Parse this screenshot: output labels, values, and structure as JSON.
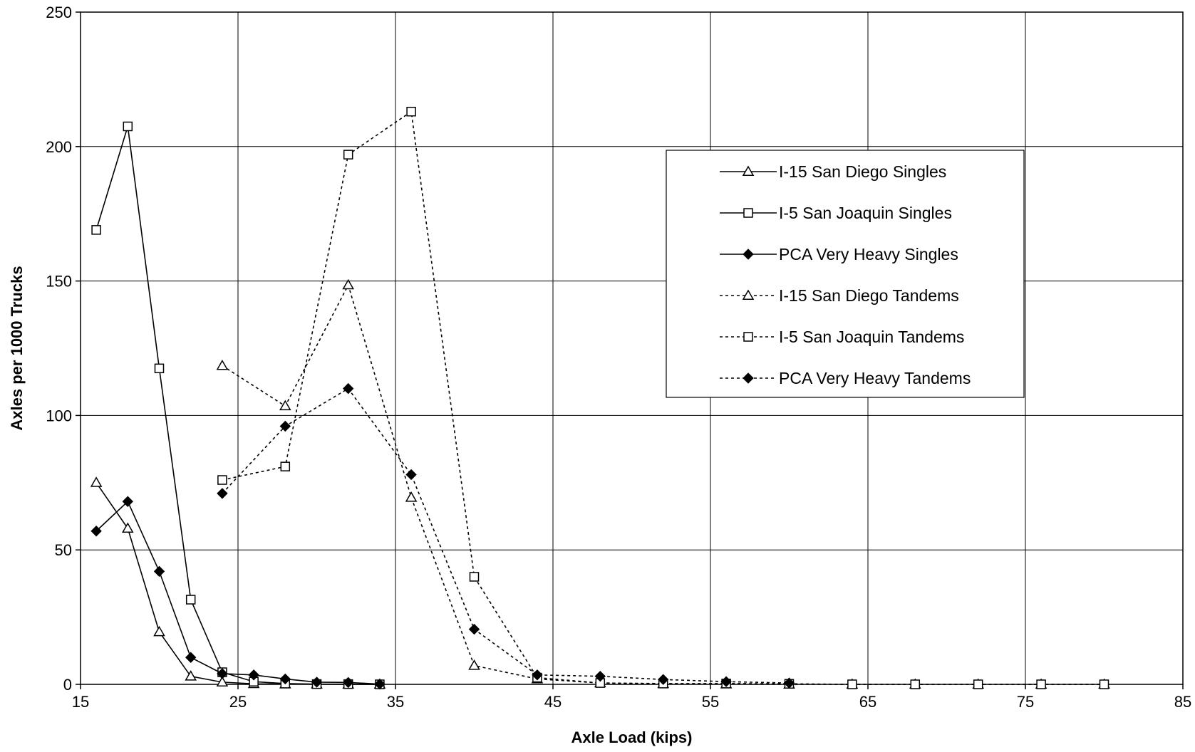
{
  "chart_data": {
    "type": "line",
    "title": "",
    "xlabel": "Axle Load (kips)",
    "ylabel": "Axles per 1000 Trucks",
    "xlim": [
      15,
      85
    ],
    "ylim": [
      0,
      250
    ],
    "x_ticks": [
      15,
      25,
      35,
      45,
      55,
      65,
      75,
      85
    ],
    "y_ticks": [
      0,
      50,
      100,
      150,
      200,
      250
    ],
    "grid": true,
    "legend_position": "upper-right",
    "series": [
      {
        "name": "I-15 San Diego Singles",
        "marker": "triangle-open",
        "line": "solid",
        "points": [
          [
            16,
            75
          ],
          [
            18,
            58
          ],
          [
            20,
            19.5
          ],
          [
            22,
            3
          ],
          [
            24,
            0.8
          ],
          [
            26,
            0.2
          ],
          [
            28,
            0.1
          ],
          [
            30,
            0.05
          ],
          [
            32,
            0
          ],
          [
            34,
            0
          ]
        ]
      },
      {
        "name": "I-5 San Joaquin Singles",
        "marker": "square-open",
        "line": "solid",
        "points": [
          [
            16,
            169
          ],
          [
            18,
            207.5
          ],
          [
            20,
            117.5
          ],
          [
            22,
            31.5
          ],
          [
            24,
            4.5
          ],
          [
            26,
            1
          ],
          [
            28,
            0.3
          ],
          [
            30,
            0.1
          ],
          [
            32,
            0.1
          ],
          [
            34,
            0
          ]
        ]
      },
      {
        "name": "PCA Very Heavy Singles",
        "marker": "diamond-filled",
        "line": "solid",
        "points": [
          [
            16,
            57
          ],
          [
            18,
            68
          ],
          [
            20,
            42
          ],
          [
            22,
            10
          ],
          [
            24,
            4
          ],
          [
            26,
            3.5
          ],
          [
            28,
            2
          ],
          [
            30,
            0.8
          ],
          [
            32,
            0.7
          ],
          [
            34,
            0.1
          ]
        ]
      },
      {
        "name": "I-15 San Diego Tandems",
        "marker": "triangle-open",
        "line": "dotted",
        "points": [
          [
            24,
            118.5
          ],
          [
            28,
            103.5
          ],
          [
            32,
            148.5
          ],
          [
            36,
            69.5
          ],
          [
            40,
            7
          ],
          [
            44,
            2
          ],
          [
            48,
            0.5
          ],
          [
            52,
            0.2
          ],
          [
            56,
            0.1
          ],
          [
            60,
            0
          ],
          [
            64,
            0
          ],
          [
            68,
            0
          ],
          [
            72,
            0
          ],
          [
            76,
            0
          ],
          [
            80,
            0
          ]
        ]
      },
      {
        "name": "I-5 San Joaquin Tandems",
        "marker": "square-open",
        "line": "dotted",
        "points": [
          [
            24,
            76
          ],
          [
            28,
            81
          ],
          [
            32,
            197
          ],
          [
            36,
            213
          ],
          [
            40,
            40
          ],
          [
            44,
            2.5
          ],
          [
            48,
            0.5
          ],
          [
            52,
            0.3
          ],
          [
            56,
            0.3
          ],
          [
            60,
            0.2
          ],
          [
            64,
            0
          ],
          [
            68,
            0
          ],
          [
            72,
            0
          ],
          [
            76,
            0
          ],
          [
            80,
            0
          ]
        ]
      },
      {
        "name": "PCA Very Heavy Tandems",
        "marker": "diamond-filled",
        "line": "dotted",
        "points": [
          [
            24,
            71
          ],
          [
            28,
            96
          ],
          [
            32,
            110
          ],
          [
            36,
            78
          ],
          [
            40,
            20.5
          ],
          [
            44,
            3.5
          ],
          [
            48,
            3
          ],
          [
            52,
            1.8
          ],
          [
            56,
            1
          ],
          [
            60,
            0.5
          ]
        ]
      }
    ]
  }
}
